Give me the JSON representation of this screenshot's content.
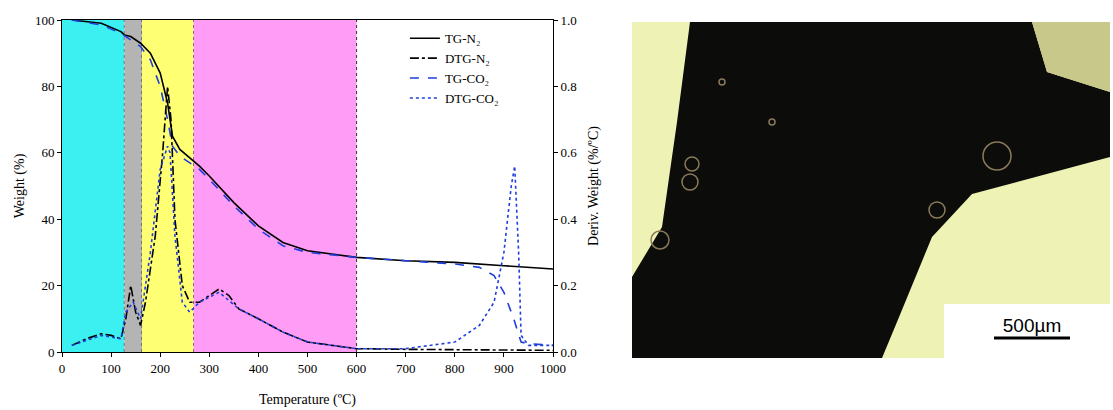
{
  "chart_data": {
    "type": "line",
    "x_label": "Temperature (ºC)",
    "y_label": "Weight (%)",
    "y2_label": "Deriv. Weight (%/ºC)",
    "xlim": [
      0,
      1000
    ],
    "xticks": [
      0,
      100,
      200,
      300,
      400,
      500,
      600,
      700,
      800,
      900,
      1000
    ],
    "ylim": [
      0,
      100
    ],
    "yticks": [
      0,
      20,
      40,
      60,
      80,
      100
    ],
    "y2lim": [
      0,
      1
    ],
    "y2ticks": [
      {
        "value": 0,
        "label": "0.0"
      },
      0.2,
      0.4,
      0.6,
      0.8,
      {
        "value": 1,
        "label": "1.0"
      }
    ],
    "grid": false,
    "legend": "upper right",
    "regions": [
      {
        "x0": 0,
        "x1": 127,
        "color": "#3cf0f2"
      },
      {
        "x0": 127,
        "x1": 163,
        "color": "#b4b4b4"
      },
      {
        "x0": 163,
        "x1": 268,
        "color": "#ffff73"
      },
      {
        "x0": 268,
        "x1": 600,
        "color": "#ff9cf5"
      }
    ],
    "series": [
      {
        "name": "TG-N₂",
        "color": "#000000",
        "line_style": "solid",
        "x": [
          20,
          80,
          120,
          127,
          140,
          160,
          180,
          200,
          215,
          225,
          240,
          260,
          280,
          300,
          350,
          400,
          450,
          500,
          550,
          600,
          700,
          800,
          900,
          1000
        ],
        "values": [
          100,
          99,
          96.5,
          95.5,
          95,
          93,
          90,
          84,
          75,
          65,
          61,
          58.5,
          56,
          53,
          45,
          38,
          33,
          30.5,
          29.5,
          28.5,
          27.5,
          27,
          26,
          25
        ]
      },
      {
        "name": "DTG-N₂",
        "color": "#000000",
        "line_style": "dashdot",
        "axis": "y2",
        "x": [
          20,
          50,
          80,
          100,
          120,
          130,
          140,
          150,
          160,
          170,
          190,
          205,
          215,
          222,
          230,
          245,
          260,
          280,
          300,
          320,
          340,
          360,
          400,
          450,
          500,
          550,
          600,
          700,
          1000
        ],
        "values": [
          0.02,
          0.04,
          0.055,
          0.05,
          0.04,
          0.1,
          0.2,
          0.12,
          0.08,
          0.15,
          0.35,
          0.6,
          0.8,
          0.7,
          0.4,
          0.2,
          0.15,
          0.15,
          0.17,
          0.19,
          0.17,
          0.13,
          0.1,
          0.06,
          0.03,
          0.02,
          0.01,
          0.008,
          0.005
        ]
      },
      {
        "name": "TG-CO₂",
        "color": "#1f3fdc",
        "line_style": "dash",
        "x": [
          20,
          80,
          120,
          160,
          180,
          200,
          215,
          225,
          240,
          260,
          280,
          300,
          350,
          400,
          450,
          500,
          600,
          700,
          800,
          850,
          880,
          900,
          920,
          935,
          950,
          1000
        ],
        "values": [
          100,
          98.5,
          96,
          92,
          88,
          80,
          70,
          62,
          59,
          57,
          55,
          52,
          44,
          37,
          32,
          30,
          28.5,
          27.5,
          26.5,
          25.5,
          23,
          18,
          10,
          3,
          2.5,
          2
        ]
      },
      {
        "name": "DTG-CO₂",
        "color": "#1f3fdc",
        "line_style": "dot",
        "axis": "y2",
        "x": [
          20,
          80,
          120,
          130,
          145,
          160,
          180,
          200,
          215,
          220,
          230,
          245,
          260,
          280,
          320,
          360,
          400,
          450,
          500,
          600,
          700,
          800,
          850,
          880,
          900,
          915,
          922,
          930,
          935,
          950,
          1000
        ],
        "values": [
          0.02,
          0.05,
          0.04,
          0.12,
          0.15,
          0.1,
          0.3,
          0.55,
          0.62,
          0.6,
          0.35,
          0.15,
          0.12,
          0.15,
          0.18,
          0.13,
          0.1,
          0.06,
          0.03,
          0.01,
          0.01,
          0.03,
          0.08,
          0.15,
          0.3,
          0.5,
          0.56,
          0.3,
          0.05,
          0.02,
          0.02
        ]
      }
    ]
  },
  "image": {
    "scale_bar_label": "500µm"
  }
}
